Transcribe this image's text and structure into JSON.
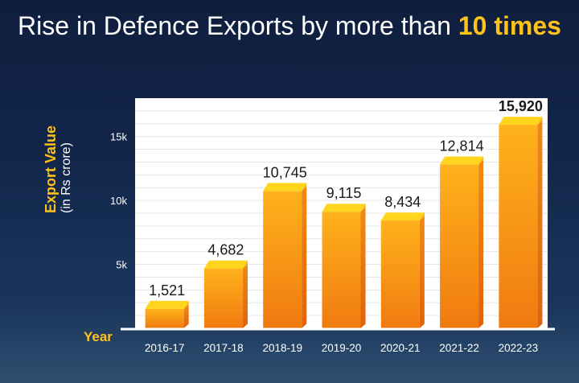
{
  "title": {
    "prefix": "Rise in Defence Exports by more than ",
    "highlight": "10 times"
  },
  "colors": {
    "background": "#13274c",
    "accent": "#ffc21a",
    "bar_front": "#f08010",
    "bar_top": "#ffd11a",
    "panel": "#ffffff"
  },
  "chart_data": {
    "type": "bar",
    "title": "Rise in Defence Exports by more than 10 times",
    "xlabel": "Year",
    "ylabel": "Export Value",
    "ylabel_sub": "(in Rs crore)",
    "categories": [
      "2016-17",
      "2017-18",
      "2018-19",
      "2019-20",
      "2020-21",
      "2021-22",
      "2022-23"
    ],
    "values": [
      1521,
      4682,
      10745,
      9115,
      8434,
      12814,
      15920
    ],
    "value_labels": [
      "1,521",
      "4,682",
      "10,745",
      "9,115",
      "8,434",
      "12,814",
      "15,920"
    ],
    "yticks": [
      5000,
      10000,
      15000
    ],
    "ytick_labels": [
      "5k",
      "10k",
      "15k"
    ],
    "ylim": [
      0,
      18000
    ],
    "grid": true
  }
}
